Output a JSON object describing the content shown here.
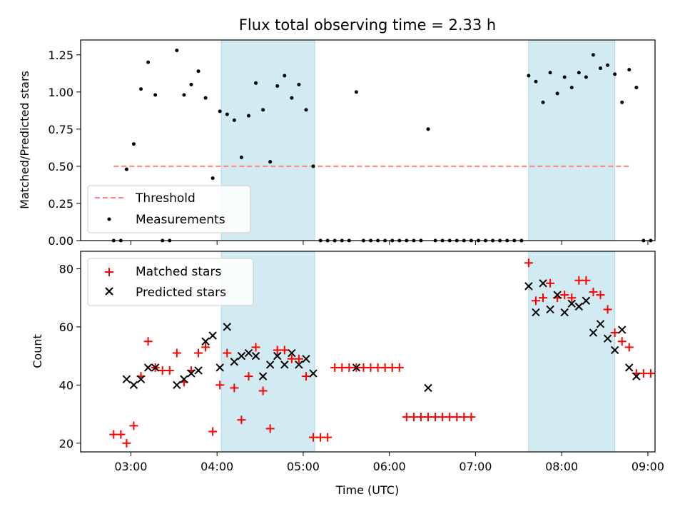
{
  "title": "Flux total observing time = 2.33 h",
  "xlabel": "Time (UTC)",
  "colors": {
    "shade": "#add8e6",
    "threshold": "#ff8080",
    "measurement": "#000000",
    "matched": "#ff0000",
    "predicted": "#000000"
  },
  "chart_data": [
    {
      "type": "scatter",
      "ylabel": "Matched/Predicted stars",
      "xlim": [
        "02:25",
        "09:05"
      ],
      "ylim": [
        0,
        1.35
      ],
      "yticks": [
        "0.00",
        "0.25",
        "0.50",
        "0.75",
        "1.00",
        "1.25"
      ],
      "legend": "bottom-left",
      "shaded_x": [
        [
          "04:03",
          "05:08"
        ],
        [
          "07:37",
          "08:37"
        ]
      ],
      "threshold": {
        "name": "Threshold",
        "y": 0.5,
        "x": [
          "02:48",
          "08:48"
        ]
      },
      "series": [
        {
          "name": "Measurements",
          "marker": "dot",
          "points": [
            [
              "02:48",
              0
            ],
            [
              "02:53",
              0
            ],
            [
              "02:57",
              0.48
            ],
            [
              "03:02",
              0.65
            ],
            [
              "03:07",
              1.02
            ],
            [
              "03:12",
              1.2
            ],
            [
              "03:17",
              0.98
            ],
            [
              "03:22",
              0
            ],
            [
              "03:27",
              0
            ],
            [
              "03:32",
              1.28
            ],
            [
              "03:37",
              0.98
            ],
            [
              "03:42",
              1.05
            ],
            [
              "03:47",
              1.14
            ],
            [
              "03:52",
              0.96
            ],
            [
              "03:57",
              0.42
            ],
            [
              "04:02",
              0.87
            ],
            [
              "04:07",
              0.85
            ],
            [
              "04:12",
              0.81
            ],
            [
              "04:17",
              0.56
            ],
            [
              "04:22",
              0.84
            ],
            [
              "04:27",
              1.06
            ],
            [
              "04:32",
              0.88
            ],
            [
              "04:37",
              0.53
            ],
            [
              "04:42",
              1.04
            ],
            [
              "04:47",
              1.11
            ],
            [
              "04:52",
              0.96
            ],
            [
              "04:57",
              1.05
            ],
            [
              "05:02",
              0.88
            ],
            [
              "05:07",
              0.5
            ],
            [
              "05:12",
              0
            ],
            [
              "05:17",
              0
            ],
            [
              "05:22",
              0
            ],
            [
              "05:27",
              0
            ],
            [
              "05:32",
              0
            ],
            [
              "05:37",
              1.0
            ],
            [
              "05:42",
              0
            ],
            [
              "05:47",
              0
            ],
            [
              "05:52",
              0
            ],
            [
              "05:57",
              0
            ],
            [
              "06:02",
              0
            ],
            [
              "06:07",
              0
            ],
            [
              "06:12",
              0
            ],
            [
              "06:17",
              0
            ],
            [
              "06:22",
              0
            ],
            [
              "06:27",
              0.75
            ],
            [
              "06:32",
              0
            ],
            [
              "06:37",
              0
            ],
            [
              "06:42",
              0
            ],
            [
              "06:47",
              0
            ],
            [
              "06:52",
              0
            ],
            [
              "06:57",
              0
            ],
            [
              "07:02",
              0
            ],
            [
              "07:07",
              0
            ],
            [
              "07:12",
              0
            ],
            [
              "07:17",
              0
            ],
            [
              "07:22",
              0
            ],
            [
              "07:27",
              0
            ],
            [
              "07:32",
              0
            ],
            [
              "07:37",
              1.11
            ],
            [
              "07:42",
              1.07
            ],
            [
              "07:47",
              0.93
            ],
            [
              "07:52",
              1.13
            ],
            [
              "07:57",
              0.99
            ],
            [
              "08:02",
              1.1
            ],
            [
              "08:07",
              1.03
            ],
            [
              "08:12",
              1.13
            ],
            [
              "08:17",
              1.1
            ],
            [
              "08:22",
              1.25
            ],
            [
              "08:27",
              1.16
            ],
            [
              "08:32",
              1.18
            ],
            [
              "08:37",
              1.12
            ],
            [
              "08:42",
              0.93
            ],
            [
              "08:47",
              1.15
            ],
            [
              "08:52",
              1.03
            ],
            [
              "08:57",
              0
            ],
            [
              "09:02",
              0
            ]
          ]
        }
      ]
    },
    {
      "type": "scatter",
      "ylabel": "Count",
      "xlim": [
        "02:25",
        "09:05"
      ],
      "ylim": [
        17,
        86
      ],
      "yticks": [
        "20",
        "40",
        "60",
        "80"
      ],
      "xticks": [
        "03:00",
        "04:00",
        "05:00",
        "06:00",
        "07:00",
        "08:00",
        "09:00"
      ],
      "legend": "top-left",
      "shaded_x": [
        [
          "04:03",
          "05:08"
        ],
        [
          "07:37",
          "08:37"
        ]
      ],
      "series": [
        {
          "name": "Matched stars",
          "marker": "plus",
          "points": [
            [
              "02:48",
              23
            ],
            [
              "02:53",
              23
            ],
            [
              "02:57",
              20
            ],
            [
              "03:02",
              26
            ],
            [
              "03:07",
              43
            ],
            [
              "03:12",
              55
            ],
            [
              "03:17",
              46
            ],
            [
              "03:22",
              45
            ],
            [
              "03:27",
              45
            ],
            [
              "03:32",
              51
            ],
            [
              "03:37",
              41
            ],
            [
              "03:42",
              45
            ],
            [
              "03:47",
              51
            ],
            [
              "03:52",
              53
            ],
            [
              "03:57",
              24
            ],
            [
              "04:02",
              40
            ],
            [
              "04:07",
              51
            ],
            [
              "04:12",
              39
            ],
            [
              "04:17",
              28
            ],
            [
              "04:22",
              43
            ],
            [
              "04:27",
              53
            ],
            [
              "04:32",
              38
            ],
            [
              "04:37",
              25
            ],
            [
              "04:42",
              52
            ],
            [
              "04:47",
              52
            ],
            [
              "04:52",
              49
            ],
            [
              "04:57",
              49
            ],
            [
              "05:02",
              43
            ],
            [
              "05:07",
              22
            ],
            [
              "05:12",
              22
            ],
            [
              "05:17",
              22
            ],
            [
              "05:22",
              46
            ],
            [
              "05:27",
              46
            ],
            [
              "05:32",
              46
            ],
            [
              "05:37",
              46
            ],
            [
              "05:42",
              46
            ],
            [
              "05:47",
              46
            ],
            [
              "05:52",
              46
            ],
            [
              "05:57",
              46
            ],
            [
              "06:02",
              46
            ],
            [
              "06:07",
              46
            ],
            [
              "06:12",
              29
            ],
            [
              "06:17",
              29
            ],
            [
              "06:22",
              29
            ],
            [
              "06:27",
              29
            ],
            [
              "06:32",
              29
            ],
            [
              "06:37",
              29
            ],
            [
              "06:42",
              29
            ],
            [
              "06:47",
              29
            ],
            [
              "06:52",
              29
            ],
            [
              "06:57",
              29
            ],
            [
              "07:37",
              82
            ],
            [
              "07:42",
              69
            ],
            [
              "07:47",
              70
            ],
            [
              "07:52",
              75
            ],
            [
              "07:57",
              70
            ],
            [
              "08:02",
              71
            ],
            [
              "08:07",
              70
            ],
            [
              "08:12",
              76
            ],
            [
              "08:17",
              76
            ],
            [
              "08:22",
              72
            ],
            [
              "08:27",
              71
            ],
            [
              "08:32",
              66
            ],
            [
              "08:37",
              58
            ],
            [
              "08:42",
              55
            ],
            [
              "08:47",
              53
            ],
            [
              "08:52",
              44
            ],
            [
              "08:57",
              44
            ],
            [
              "09:02",
              44
            ]
          ]
        },
        {
          "name": "Predicted stars",
          "marker": "x",
          "points": [
            [
              "02:57",
              42
            ],
            [
              "03:02",
              40
            ],
            [
              "03:07",
              42
            ],
            [
              "03:12",
              46
            ],
            [
              "03:17",
              46
            ],
            [
              "03:32",
              40
            ],
            [
              "03:37",
              42
            ],
            [
              "03:42",
              44
            ],
            [
              "03:47",
              45
            ],
            [
              "03:52",
              55
            ],
            [
              "03:57",
              57
            ],
            [
              "04:02",
              46
            ],
            [
              "04:07",
              60
            ],
            [
              "04:12",
              48
            ],
            [
              "04:17",
              50
            ],
            [
              "04:22",
              51
            ],
            [
              "04:27",
              50
            ],
            [
              "04:32",
              43
            ],
            [
              "04:37",
              47
            ],
            [
              "04:42",
              50
            ],
            [
              "04:47",
              47
            ],
            [
              "04:52",
              51
            ],
            [
              "04:57",
              47
            ],
            [
              "05:02",
              49
            ],
            [
              "05:07",
              44
            ],
            [
              "05:37",
              46
            ],
            [
              "06:27",
              39
            ],
            [
              "07:37",
              74
            ],
            [
              "07:42",
              65
            ],
            [
              "07:47",
              75
            ],
            [
              "07:52",
              66
            ],
            [
              "07:57",
              71
            ],
            [
              "08:02",
              65
            ],
            [
              "08:07",
              68
            ],
            [
              "08:12",
              67
            ],
            [
              "08:17",
              69
            ],
            [
              "08:22",
              58
            ],
            [
              "08:27",
              61
            ],
            [
              "08:32",
              56
            ],
            [
              "08:37",
              52
            ],
            [
              "08:42",
              59
            ],
            [
              "08:47",
              46
            ],
            [
              "08:52",
              43
            ]
          ]
        }
      ]
    }
  ]
}
